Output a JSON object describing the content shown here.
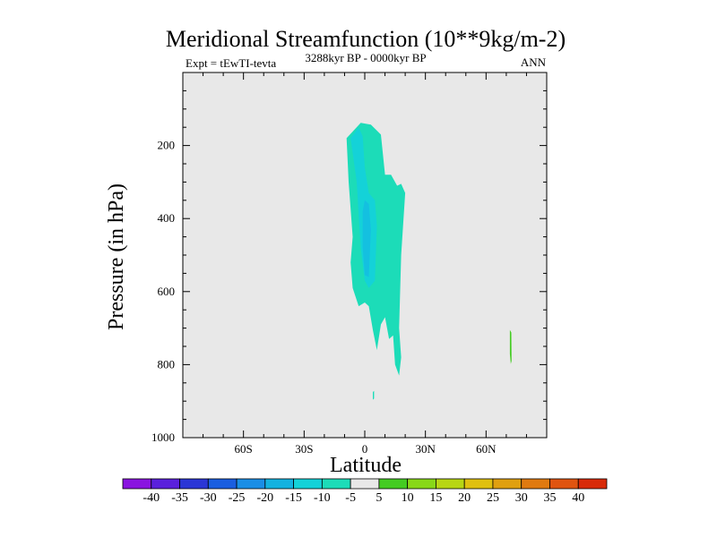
{
  "chart_data": {
    "type": "contour",
    "title": "Meridional Streamfunction (10**9kg/m-2)",
    "subtitle_left": "Expt = tEwTI-tevta",
    "subtitle_center": "3288kyr BP - 0000kyr BP",
    "subtitle_right": "ANN",
    "xlabel": "Latitude",
    "ylabel": "Pressure (in hPa)",
    "xlim": [
      -90,
      90
    ],
    "ylim": [
      1000,
      0
    ],
    "x_ticks": [
      {
        "value": -60,
        "label": "60S"
      },
      {
        "value": -30,
        "label": "30S"
      },
      {
        "value": 0,
        "label": "0"
      },
      {
        "value": 30,
        "label": "30N"
      },
      {
        "value": 60,
        "label": "60N"
      }
    ],
    "y_ticks": [
      {
        "value": 200,
        "label": "200"
      },
      {
        "value": 400,
        "label": "400"
      },
      {
        "value": 600,
        "label": "600"
      },
      {
        "value": 800,
        "label": "800"
      },
      {
        "value": 1000,
        "label": "1000"
      }
    ],
    "background_color": "#e8e8e8",
    "colorbar": {
      "labels": [
        "-40",
        "-35",
        "-30",
        "-25",
        "-20",
        "-15",
        "-10",
        "-5",
        "5",
        "10",
        "15",
        "20",
        "25",
        "30",
        "35",
        "40"
      ],
      "colors": [
        "#8a14e0",
        "#5a20dc",
        "#2a36d6",
        "#1a5ee0",
        "#1a8ee6",
        "#14b2e0",
        "#14d2d8",
        "#1cdcb8",
        "#e8e8e8",
        "#44cc22",
        "#88d818",
        "#b8d614",
        "#e0c010",
        "#e0a010",
        "#e07a10",
        "#e05410",
        "#d82a08"
      ]
    },
    "regions": [
      {
        "name": "negative-5-to-0-region",
        "level": "-5 to 0",
        "color": "#1cdcb8",
        "points": [
          [
            -9,
            180
          ],
          [
            -2,
            138
          ],
          [
            3,
            143
          ],
          [
            8,
            170
          ],
          [
            10,
            280
          ],
          [
            13,
            280
          ],
          [
            16,
            310
          ],
          [
            18,
            305
          ],
          [
            20,
            330
          ],
          [
            18,
            500
          ],
          [
            17,
            700
          ],
          [
            18,
            780
          ],
          [
            17,
            830
          ],
          [
            15,
            800
          ],
          [
            14,
            720
          ],
          [
            12,
            730
          ],
          [
            10,
            670
          ],
          [
            8,
            690
          ],
          [
            6,
            760
          ],
          [
            4,
            705
          ],
          [
            2,
            640
          ],
          [
            0,
            630
          ],
          [
            -3,
            640
          ],
          [
            -6,
            590
          ],
          [
            -7,
            520
          ],
          [
            -6,
            450
          ],
          [
            -8,
            300
          ]
        ]
      },
      {
        "name": "negative-10-to-5-core",
        "level": "-10 to -5",
        "color": "#14d2d8",
        "points": [
          [
            -7,
            180
          ],
          [
            -3,
            150
          ],
          [
            -1,
            175
          ],
          [
            0,
            260
          ],
          [
            2,
            330
          ],
          [
            5,
            350
          ],
          [
            6,
            420
          ],
          [
            5,
            570
          ],
          [
            2,
            590
          ],
          [
            0,
            570
          ],
          [
            -2,
            480
          ],
          [
            -4,
            300
          ]
        ]
      },
      {
        "name": "negative-15-to-10-core",
        "level": "-15 to -10",
        "color": "#14c0e0",
        "points": [
          [
            -1,
            380
          ],
          [
            0,
            350
          ],
          [
            2,
            360
          ],
          [
            3,
            430
          ],
          [
            2,
            560
          ],
          [
            0,
            555
          ],
          [
            -1,
            480
          ]
        ]
      },
      {
        "name": "bottom-blip",
        "level": "-5 to 0",
        "color": "#1cdcb8",
        "points": [
          [
            4,
            875
          ],
          [
            4.6,
            872
          ],
          [
            4.6,
            893
          ],
          [
            4,
            896
          ]
        ]
      },
      {
        "name": "positive-5-to-10-sliver",
        "level": "5 to 10",
        "color": "#44cc22",
        "points": [
          [
            71.8,
            705
          ],
          [
            72.5,
            712
          ],
          [
            72.6,
            790
          ],
          [
            72.2,
            798
          ],
          [
            71.8,
            770
          ]
        ]
      }
    ]
  }
}
